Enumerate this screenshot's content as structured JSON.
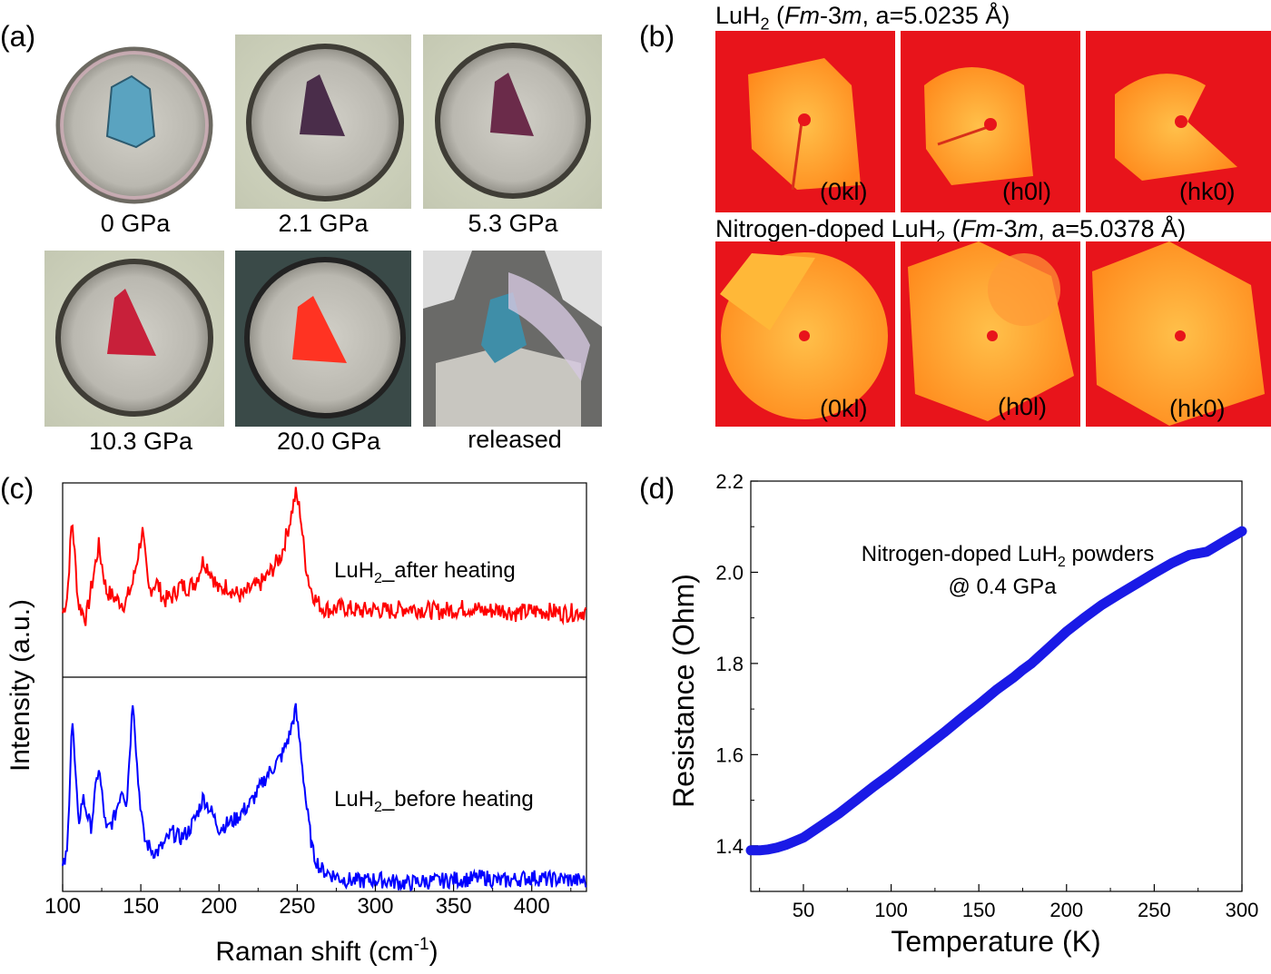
{
  "panel_a": {
    "label": "(a)",
    "captions": [
      "0 GPa",
      "2.1 GPa",
      "5.3 GPa",
      "10.3 GPa",
      "20.0 GPa",
      "released"
    ]
  },
  "panel_b": {
    "label": "(b)",
    "row1_title_prefix": "LuH",
    "row1_title_sub": "2",
    "row1_title_space": " (",
    "row1_title_italic": "Fm",
    "row1_title_mid": "-3",
    "row1_title_italic2": "m",
    "row1_title_suffix": ", a=5.0235 Å)",
    "row2_title_prefix": "Nitrogen-doped LuH",
    "row2_title_sub": "2",
    "row2_title_space": " (",
    "row2_title_italic": "Fm",
    "row2_title_mid": "-3",
    "row2_title_italic2": "m",
    "row2_title_suffix": ", a=5.0378 Å)",
    "planes": [
      "(0kl)",
      "(h0l)",
      "(hk0)"
    ]
  },
  "panel_c": {
    "label": "(c)",
    "ylabel": "Intensity (a.u.)",
    "xlabel_main": "Raman shift (cm",
    "xlabel_sup": "-1",
    "xlabel_end": ")",
    "xticks": [
      "100",
      "150",
      "200",
      "250",
      "300",
      "350",
      "400"
    ],
    "legend_top_prefix": "LuH",
    "legend_top_sub": "2",
    "legend_top_suffix": "_after heating",
    "legend_bottom_prefix": "LuH",
    "legend_bottom_sub": "2",
    "legend_bottom_suffix": "_before heating"
  },
  "panel_d": {
    "label": "(d)",
    "annotation_line1_prefix": "Nitrogen-doped LuH",
    "annotation_line1_sub": "2",
    "annotation_line1_suffix": " powders",
    "annotation_line2": "@ 0.4 GPa"
  },
  "chart_data": [
    {
      "type": "line",
      "panel": "(c)",
      "xlabel": "Raman shift (cm-1)",
      "ylabel": "Intensity (a.u.)",
      "xlim": [
        100,
        435
      ],
      "series": [
        {
          "name": "LuH2_after heating",
          "color": "#ff0000",
          "x": [
            100,
            103,
            106,
            110,
            115,
            118,
            123,
            128,
            135,
            140,
            145,
            151,
            155,
            160,
            165,
            170,
            175,
            180,
            185,
            190,
            195,
            200,
            205,
            210,
            215,
            220,
            225,
            230,
            235,
            240,
            245,
            249,
            252,
            255,
            258,
            262,
            266,
            270,
            280,
            290,
            300,
            310,
            320,
            330,
            340,
            350,
            360,
            370,
            380,
            390,
            400,
            410,
            420,
            435
          ],
          "y": [
            0.33,
            0.42,
            0.85,
            0.38,
            0.3,
            0.45,
            0.7,
            0.45,
            0.4,
            0.38,
            0.5,
            0.78,
            0.45,
            0.5,
            0.4,
            0.42,
            0.48,
            0.47,
            0.5,
            0.62,
            0.55,
            0.45,
            0.48,
            0.44,
            0.42,
            0.46,
            0.48,
            0.52,
            0.58,
            0.65,
            0.82,
            0.98,
            0.88,
            0.62,
            0.48,
            0.4,
            0.36,
            0.35,
            0.36,
            0.34,
            0.35,
            0.34,
            0.36,
            0.35,
            0.34,
            0.35,
            0.36,
            0.34,
            0.35,
            0.33,
            0.34,
            0.34,
            0.33,
            0.34
          ]
        },
        {
          "name": "LuH2_before heating",
          "color": "#0000ff",
          "x": [
            100,
            103,
            106,
            110,
            113,
            118,
            123,
            128,
            133,
            138,
            141,
            145,
            148,
            152,
            156,
            160,
            165,
            170,
            175,
            180,
            185,
            190,
            195,
            200,
            205,
            210,
            215,
            220,
            225,
            230,
            235,
            240,
            245,
            249,
            252,
            256,
            260,
            265,
            270,
            280,
            290,
            300,
            310,
            320,
            330,
            340,
            350,
            360,
            370,
            380,
            390,
            400,
            410,
            420,
            435
          ],
          "y": [
            0.1,
            0.18,
            0.85,
            0.32,
            0.45,
            0.3,
            0.6,
            0.28,
            0.35,
            0.5,
            0.42,
            0.95,
            0.55,
            0.25,
            0.2,
            0.18,
            0.22,
            0.28,
            0.25,
            0.28,
            0.35,
            0.45,
            0.38,
            0.3,
            0.32,
            0.34,
            0.38,
            0.42,
            0.48,
            0.55,
            0.6,
            0.65,
            0.75,
            0.88,
            0.7,
            0.4,
            0.18,
            0.1,
            0.08,
            0.05,
            0.04,
            0.05,
            0.04,
            0.03,
            0.04,
            0.04,
            0.05,
            0.05,
            0.06,
            0.04,
            0.05,
            0.06,
            0.05,
            0.05,
            0.04
          ]
        }
      ]
    },
    {
      "type": "line",
      "panel": "(d)",
      "xlabel": "Temperature (K)",
      "ylabel": "Resistance (Ohm)",
      "xlim": [
        20,
        300
      ],
      "ylim": [
        1.3,
        2.2
      ],
      "xticks": [
        50,
        100,
        150,
        200,
        250,
        300
      ],
      "yticks": [
        1.4,
        1.6,
        1.8,
        2.0,
        2.2
      ],
      "series": [
        {
          "name": "Nitrogen-doped LuH2 powders @ 0.4 GPa",
          "color": "#1a1ae6",
          "x": [
            20,
            25,
            30,
            35,
            40,
            45,
            50,
            60,
            70,
            80,
            90,
            100,
            110,
            120,
            130,
            140,
            150,
            160,
            170,
            175,
            180,
            190,
            200,
            210,
            220,
            230,
            240,
            250,
            260,
            270,
            280,
            290,
            300
          ],
          "y": [
            1.39,
            1.39,
            1.392,
            1.396,
            1.402,
            1.41,
            1.418,
            1.444,
            1.47,
            1.5,
            1.53,
            1.558,
            1.588,
            1.618,
            1.648,
            1.68,
            1.71,
            1.742,
            1.77,
            1.786,
            1.8,
            1.835,
            1.87,
            1.9,
            1.928,
            1.952,
            1.975,
            1.998,
            2.02,
            2.038,
            2.045,
            2.068,
            2.09
          ]
        }
      ]
    }
  ]
}
